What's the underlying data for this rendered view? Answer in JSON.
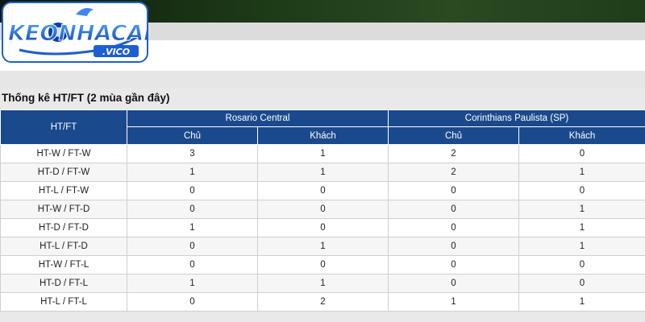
{
  "logo": {
    "text_main": "KEONHACAI",
    "text_sub": ".VICO"
  },
  "section": {
    "title": "Thống kê HT/FT (2 mùa gần đây)"
  },
  "table": {
    "first_header": "HT/FT",
    "teams": [
      "Rosario Central",
      "Corinthians Paulista (SP)"
    ],
    "sub_headers": [
      "Chủ",
      "Khách",
      "Chủ",
      "Khách"
    ],
    "rows": [
      {
        "label": "HT-W / FT-W",
        "values": [
          "3",
          "1",
          "2",
          "0"
        ]
      },
      {
        "label": "HT-D / FT-W",
        "values": [
          "1",
          "1",
          "2",
          "1"
        ]
      },
      {
        "label": "HT-L / FT-W",
        "values": [
          "0",
          "0",
          "0",
          "0"
        ]
      },
      {
        "label": "HT-W / FT-D",
        "values": [
          "0",
          "0",
          "0",
          "1"
        ]
      },
      {
        "label": "HT-D / FT-D",
        "values": [
          "1",
          "0",
          "0",
          "1"
        ]
      },
      {
        "label": "HT-L / FT-D",
        "values": [
          "0",
          "1",
          "0",
          "1"
        ]
      },
      {
        "label": "HT-W / FT-L",
        "values": [
          "0",
          "0",
          "0",
          "0"
        ]
      },
      {
        "label": "HT-D / FT-L",
        "values": [
          "1",
          "1",
          "0",
          "0"
        ]
      },
      {
        "label": "HT-L / FT-L",
        "values": [
          "0",
          "2",
          "1",
          "1"
        ]
      }
    ]
  },
  "colors": {
    "header_bg": "#1a4a8c",
    "logo_blue": "#1d5fd0"
  }
}
